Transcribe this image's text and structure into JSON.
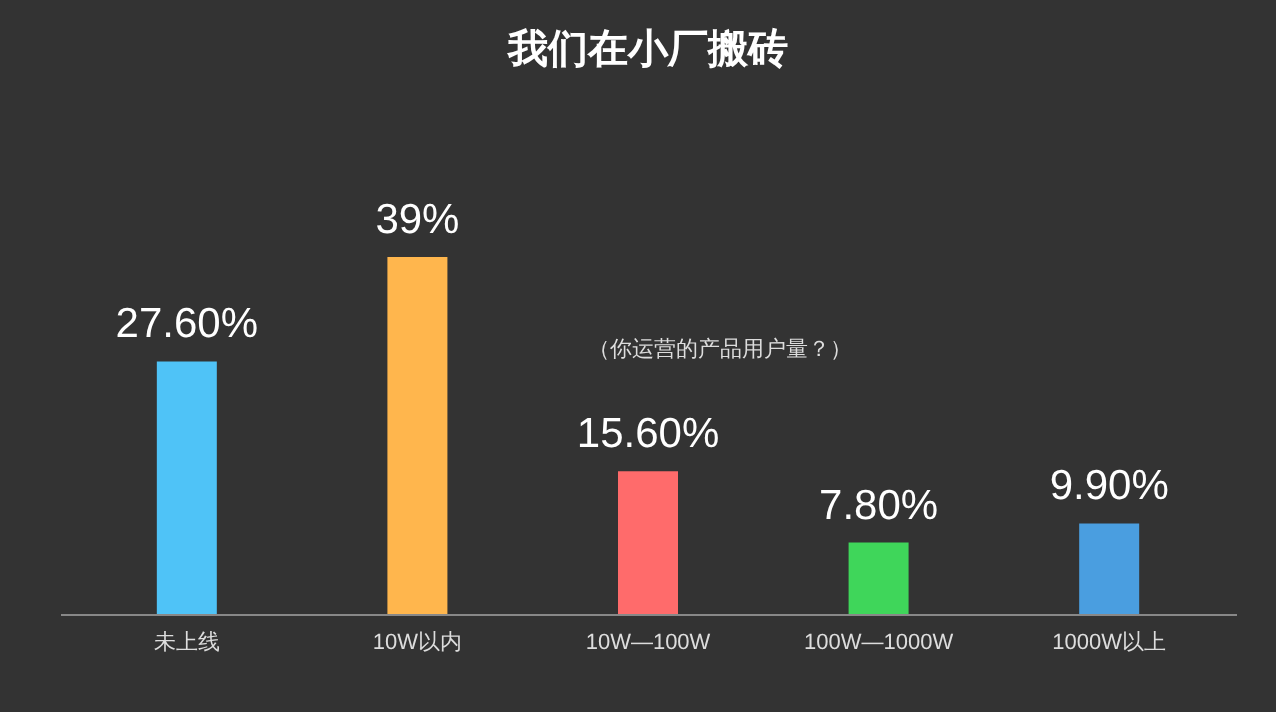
{
  "chart_data": {
    "type": "bar",
    "title": "我们在小厂搬砖",
    "annotations": [
      "（你运营的产品用户量？）"
    ],
    "categories": [
      "未上线",
      "10W以内",
      "10W—100W",
      "100W—1000W",
      "1000W以上"
    ],
    "values": [
      27.6,
      39,
      15.6,
      7.8,
      9.9
    ],
    "colors": [
      "#4fc3f7",
      "#ffb64d",
      "#ff6b6b",
      "#3fd65a",
      "#4a9ee0"
    ],
    "value_labels": [
      "27.60%",
      "39%",
      "15.60%",
      "7.80%",
      "9.90%"
    ]
  }
}
